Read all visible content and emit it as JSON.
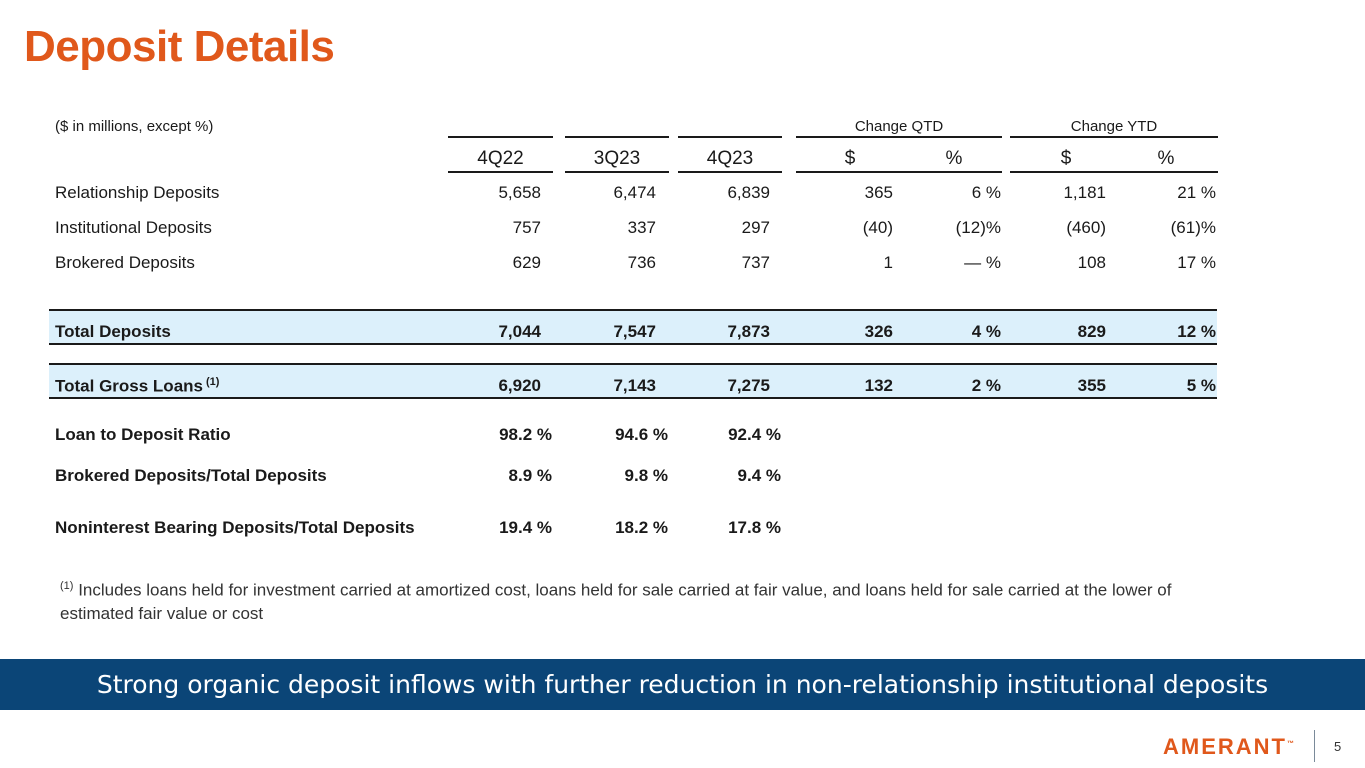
{
  "title": "Deposit Details",
  "units_note": "($ in millions, except %)",
  "group_headers": {
    "qtd": "Change QTD",
    "ytd": "Change YTD"
  },
  "columns": [
    "4Q22",
    "3Q23",
    "4Q23",
    "$",
    "%",
    "$",
    "%"
  ],
  "rows": [
    {
      "label": "Relationship Deposits",
      "values": [
        "5,658",
        "6,474",
        "6,839",
        "365",
        "6 %",
        "1,181",
        "21 %"
      ]
    },
    {
      "label": "Institutional Deposits",
      "values": [
        "757",
        "337",
        "297",
        "(40)",
        "(12)%",
        "(460)",
        "(61)%"
      ]
    },
    {
      "label": "Brokered Deposits",
      "values": [
        "629",
        "736",
        "737",
        "1",
        "— %",
        "108",
        "17 %"
      ]
    }
  ],
  "total_deposits": {
    "label": "Total Deposits",
    "values": [
      "7,044",
      "7,547",
      "7,873",
      "326",
      "4 %",
      "829",
      "12 %"
    ]
  },
  "total_loans": {
    "label": "Total Gross Loans",
    "footnote_ref": "(1)",
    "values": [
      "6,920",
      "7,143",
      "7,275",
      "132",
      "2 %",
      "355",
      "5 %"
    ]
  },
  "ratios": [
    {
      "label": "Loan to Deposit Ratio",
      "values": [
        "98.2 %",
        "94.6 %",
        "92.4 %"
      ]
    },
    {
      "label": "Brokered Deposits/Total Deposits",
      "values": [
        "8.9 %",
        "9.8 %",
        "9.4 %"
      ]
    },
    {
      "label": "Noninterest Bearing Deposits/Total Deposits",
      "values": [
        "19.4 %",
        "18.2 %",
        "17.8 %"
      ]
    }
  ],
  "footnote": {
    "marker": "(1)",
    "text": "Includes loans held for investment carried at amortized cost, loans held for sale carried at fair value, and loans held for sale carried at the lower of estimated fair value or cost"
  },
  "banner": "Strong organic deposit inflows with further reduction in non-relationship institutional deposits",
  "logo": {
    "text": "AMERANT",
    "tm": "™"
  },
  "page_number": "5",
  "colors": {
    "accent": "#e0581b",
    "banner": "#0b4577",
    "highlight": "#dcf0fb"
  }
}
